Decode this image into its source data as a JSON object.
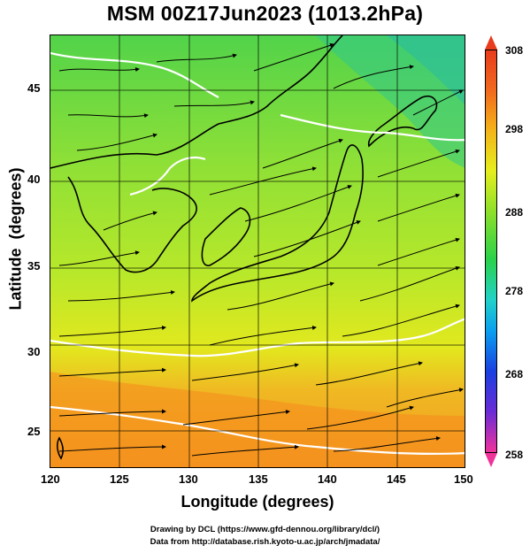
{
  "title": "MSM 00Z17Jun2023 (1013.2hPa)",
  "x_axis": {
    "label": "Longitude (degrees)",
    "range": [
      120,
      150
    ],
    "ticks": [
      "120",
      "125",
      "130",
      "135",
      "140",
      "145",
      "150"
    ]
  },
  "y_axis": {
    "label": "Latitude  (degrees)",
    "range": [
      22.4,
      47.6
    ],
    "ticks": [
      "25",
      "30",
      "35",
      "40",
      "45"
    ]
  },
  "colorbar": {
    "range": [
      258,
      308
    ],
    "tick_labels": [
      "308",
      "298",
      "288",
      "278",
      "268",
      "258"
    ],
    "colors": [
      "#f0329b",
      "#6b2bd6",
      "#1a3fe0",
      "#0a9ef0",
      "#22d2c8",
      "#2ad24a",
      "#8fe02a",
      "#e6ee1e",
      "#f4b41a",
      "#f26a1e",
      "#e83c1c"
    ]
  },
  "credits": {
    "line1": "Drawing by DCL (https://www.gfd-dennou.org/library/dcl/)",
    "line2": "Data from http://database.rish.kyoto-u.ac.jp/arch/jmadata/"
  }
}
